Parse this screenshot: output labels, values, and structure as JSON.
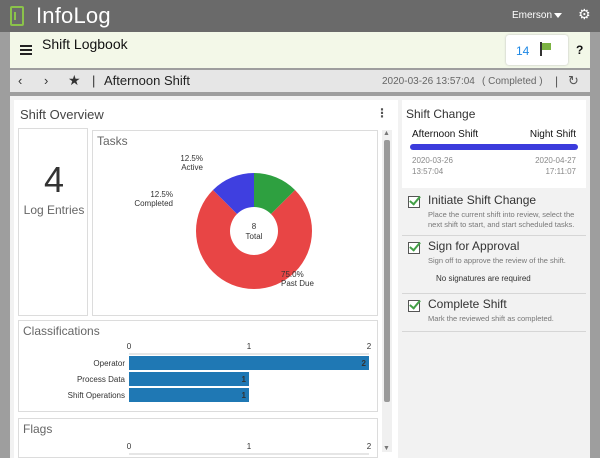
{
  "app": {
    "title": "InfoLog",
    "subtitle": "Shift Logbook",
    "user": "Emerson",
    "flag_count": "14",
    "help": "?"
  },
  "nav": {
    "back": "‹",
    "forward": "›",
    "separator": "|",
    "shift_name": "Afternoon Shift",
    "datetime": "2020-03-26 13:57:04",
    "status": "( Completed )",
    "separator2": "|"
  },
  "overview": {
    "title": "Shift Overview",
    "log_count": "4",
    "log_label": "Log Entries",
    "tasks_title": "Tasks",
    "classifications_title": "Classifications",
    "flags_title": "Flags"
  },
  "chart_data": [
    {
      "type": "pie",
      "title": "Tasks",
      "center_label": [
        "8",
        "Total"
      ],
      "slices": [
        {
          "label": "Past Due",
          "percent": 75.0,
          "color": "#e84545"
        },
        {
          "label": "Completed",
          "percent": 12.5,
          "color": "#3f3fe0"
        },
        {
          "label": "Active",
          "percent": 12.5,
          "color": "#2ea040"
        }
      ]
    },
    {
      "type": "bar",
      "title": "Classifications",
      "orientation": "horizontal",
      "categories": [
        "Operator",
        "Process Data",
        "Shift Operations"
      ],
      "values": [
        2,
        1,
        1
      ],
      "xlim": [
        0,
        2
      ],
      "ticks": [
        "0",
        "1",
        "2"
      ],
      "color": "#1f78b4"
    },
    {
      "type": "bar",
      "title": "Flags",
      "orientation": "horizontal",
      "categories": [],
      "values": [],
      "xlim": [
        0,
        2
      ],
      "ticks": [
        "0",
        "1",
        "2"
      ]
    }
  ],
  "shift_change": {
    "title": "Shift Change",
    "from_shift": "Afternoon Shift",
    "to_shift": "Night Shift",
    "from_date": "2020-03-26",
    "from_time": "13:57:04",
    "to_date": "2020-04-27",
    "to_time": "17:11:07"
  },
  "steps": [
    {
      "title": "Initiate Shift Change",
      "description": "Place the current shift into review, select the next shift to start, and start scheduled tasks."
    },
    {
      "title": "Sign for Approval",
      "description": "Sign off to approve the review of the shift.",
      "note": "No signatures are required"
    },
    {
      "title": "Complete Shift",
      "description": "Mark the reviewed shift as completed."
    }
  ]
}
